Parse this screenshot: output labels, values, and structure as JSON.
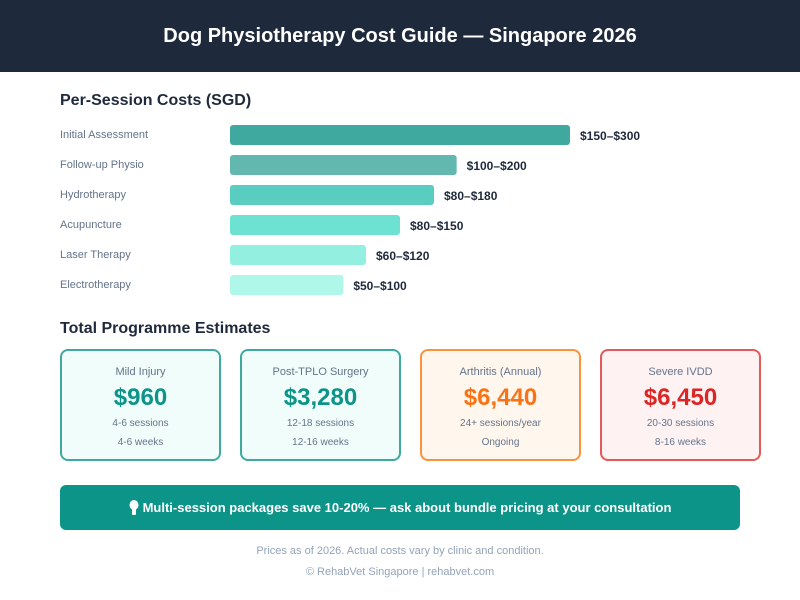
{
  "header": {
    "title": "Dog Physiotherapy Cost Guide — Singapore 2026"
  },
  "chart_data": {
    "type": "bar",
    "orientation": "horizontal",
    "title": "Per-Session Costs (SGD)",
    "categories": [
      "Initial Assessment",
      "Follow-up Physio",
      "Hydrotherapy",
      "Acupuncture",
      "Laser Therapy",
      "Electrotherapy"
    ],
    "min": [
      150,
      100,
      80,
      80,
      60,
      50
    ],
    "max": [
      300,
      200,
      180,
      150,
      120,
      100
    ],
    "labels": [
      "$150–$300",
      "$100–$200",
      "$80–$180",
      "$80–$150",
      "$60–$120",
      "$50–$100"
    ],
    "colors": [
      "#3fa9a0",
      "#62b8ae",
      "#58cdc0",
      "#6ee2d2",
      "#93f0e0",
      "#aff7e8"
    ]
  },
  "programmes": {
    "title": "Total Programme Estimates",
    "cards": [
      {
        "title": "Mild Injury",
        "price": "$960",
        "sessions": "4-6 sessions",
        "duration": "4-6 weeks",
        "color": "#0d9488",
        "border": "#3fa9a0",
        "bg": "#f0fdfa"
      },
      {
        "title": "Post-TPLO Surgery",
        "price": "$3,280",
        "sessions": "12-18 sessions",
        "duration": "12-16 weeks",
        "color": "#0d9488",
        "border": "#3fa9a0",
        "bg": "#f0fdfa"
      },
      {
        "title": "Arthritis (Annual)",
        "price": "$6,440",
        "sessions": "24+ sessions/year",
        "duration": "Ongoing",
        "color": "#f97316",
        "border": "#fb923c",
        "bg": "#fff7ed"
      },
      {
        "title": "Severe IVDD",
        "price": "$6,450",
        "sessions": "20-30 sessions",
        "duration": "8-16 weeks",
        "color": "#dc2626",
        "border": "#e35a5a",
        "bg": "#fef2f2"
      }
    ]
  },
  "banner": {
    "icon": "lightbulb-icon",
    "text": "Multi-session packages save 10-20% — ask about bundle pricing at your consultation"
  },
  "footer": {
    "note": "Prices as of 2026. Actual costs vary by clinic and condition.",
    "credit": "© RehabVet Singapore | rehabvet.com"
  }
}
